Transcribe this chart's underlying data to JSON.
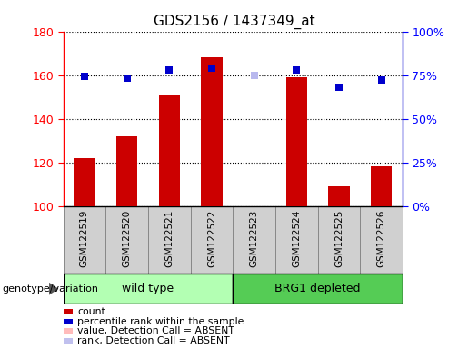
{
  "title": "GDS2156 / 1437349_at",
  "samples": [
    "GSM122519",
    "GSM122520",
    "GSM122521",
    "GSM122522",
    "GSM122523",
    "GSM122524",
    "GSM122525",
    "GSM122526"
  ],
  "bar_values": [
    122,
    132,
    151,
    168,
    100,
    159,
    109,
    118
  ],
  "bar_colors": [
    "#cc0000",
    "#cc0000",
    "#cc0000",
    "#cc0000",
    "#ffbbbb",
    "#cc0000",
    "#cc0000",
    "#cc0000"
  ],
  "rank_values": [
    74,
    73,
    78,
    79,
    75,
    78,
    68,
    72
  ],
  "rank_colors": [
    "#0000cc",
    "#0000cc",
    "#0000cc",
    "#0000cc",
    "#b8b8ee",
    "#0000cc",
    "#0000cc",
    "#0000cc"
  ],
  "ylim_left": [
    100,
    180
  ],
  "ylim_right": [
    0,
    100
  ],
  "yticks_left": [
    100,
    120,
    140,
    160,
    180
  ],
  "yticks_right": [
    0,
    25,
    50,
    75,
    100
  ],
  "ytick_labels_right": [
    "0%",
    "25%",
    "50%",
    "75%",
    "100%"
  ],
  "groups": [
    {
      "label": "wild type",
      "start": 0,
      "end": 4,
      "color": "#b3ffb3"
    },
    {
      "label": "BRG1 depleted",
      "start": 4,
      "end": 8,
      "color": "#55cc55"
    }
  ],
  "group_row_label": "genotype/variation",
  "legend": [
    {
      "label": "count",
      "color": "#cc0000"
    },
    {
      "label": "percentile rank within the sample",
      "color": "#0000cc"
    },
    {
      "label": "value, Detection Call = ABSENT",
      "color": "#ffbbbb"
    },
    {
      "label": "rank, Detection Call = ABSENT",
      "color": "#c0c0ee"
    }
  ],
  "bar_width": 0.5,
  "marker_size": 6,
  "cell_color": "#d0d0d0",
  "cell_edge_color": "#888888"
}
